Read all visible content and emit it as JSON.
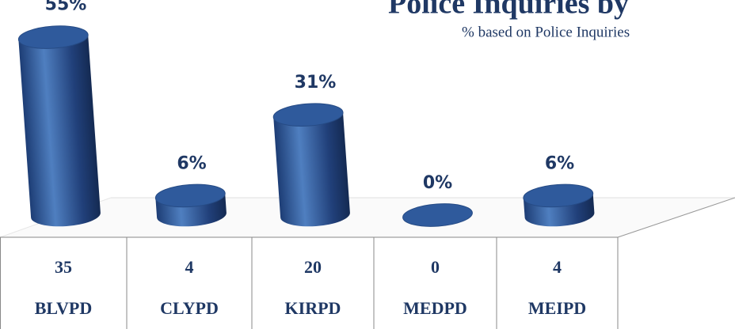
{
  "chart_data": {
    "type": "cylinder",
    "title": "Police Inquiries by",
    "subtitle": "% based on Police Inquiries",
    "categories": [
      "BLVPD",
      "CLYPD",
      "KIRPD",
      "MEDPD",
      "MEIPD"
    ],
    "values": [
      55,
      6,
      31,
      0,
      6
    ],
    "value_labels": [
      "55%",
      "6%",
      "31%",
      "0%",
      "6%"
    ],
    "counts": [
      35,
      4,
      20,
      0,
      4
    ],
    "color": "#2f5a9c"
  }
}
